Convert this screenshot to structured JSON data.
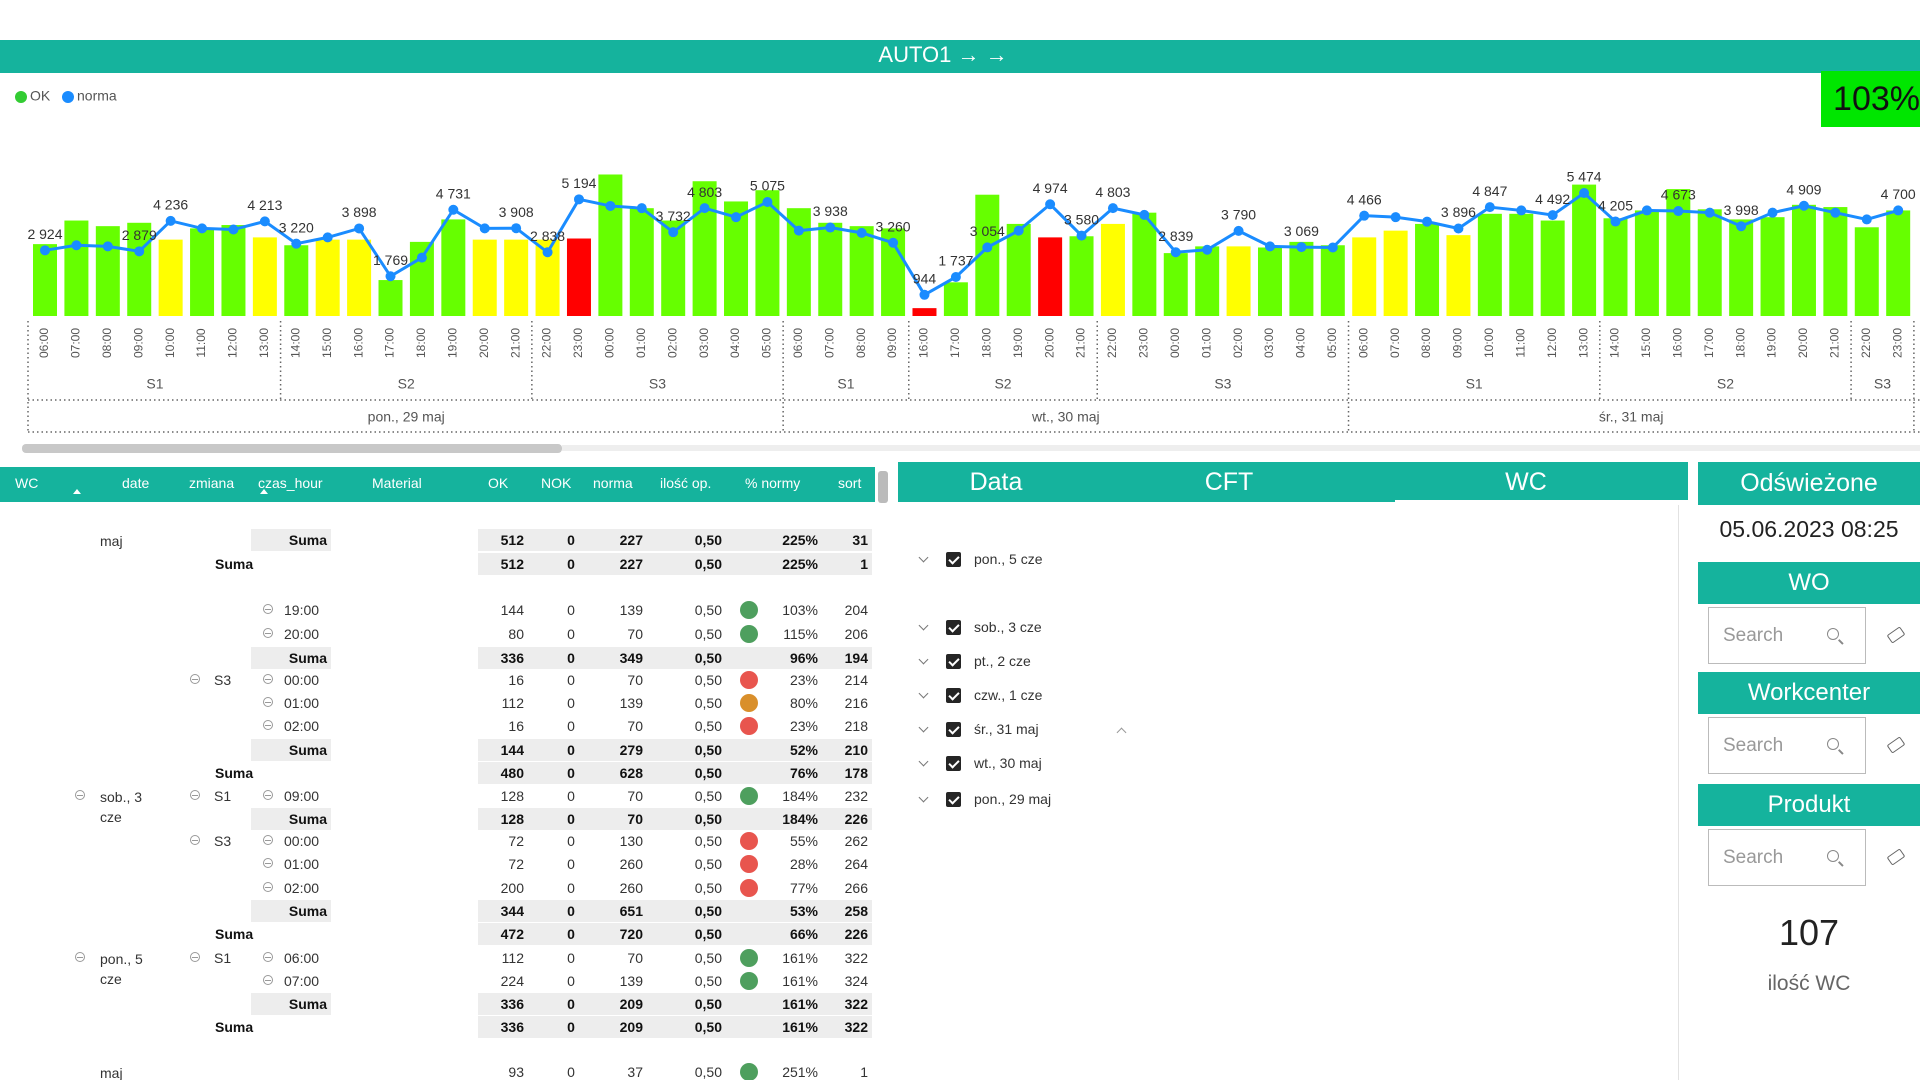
{
  "title": "AUTO1 → →",
  "kpi": "103%",
  "chart_data": {
    "type": "bar-line",
    "categories": [
      "06:00",
      "07:00",
      "08:00",
      "09:00",
      "10:00",
      "11:00",
      "12:00",
      "13:00",
      "14:00",
      "15:00",
      "16:00",
      "17:00",
      "18:00",
      "19:00",
      "20:00",
      "21:00",
      "22:00",
      "23:00",
      "00:00",
      "01:00",
      "02:00",
      "03:00",
      "04:00",
      "05:00",
      "06:00",
      "07:00",
      "08:00",
      "09:00",
      "16:00",
      "17:00",
      "18:00",
      "19:00",
      "20:00",
      "21:00",
      "22:00",
      "23:00",
      "00:00",
      "01:00",
      "02:00",
      "03:00",
      "04:00",
      "05:00",
      "06:00",
      "07:00",
      "08:00",
      "09:00",
      "10:00",
      "11:00",
      "12:00",
      "13:00",
      "14:00",
      "15:00",
      "16:00",
      "17:00",
      "18:00",
      "19:00",
      "20:00",
      "21:00",
      "22:00",
      "23:00"
    ],
    "shifts": [
      "S1",
      "S1",
      "S1",
      "S1",
      "S1",
      "S1",
      "S1",
      "S1",
      "S2",
      "S2",
      "S2",
      "S2",
      "S2",
      "S2",
      "S2",
      "S2",
      "S3",
      "S3",
      "S3",
      "S3",
      "S3",
      "S3",
      "S3",
      "S3",
      "S1",
      "S1",
      "S1",
      "S1",
      "S2",
      "S2",
      "S2",
      "S2",
      "S2",
      "S2",
      "S3",
      "S3",
      "S3",
      "S3",
      "S3",
      "S3",
      "S3",
      "S3",
      "S1",
      "S1",
      "S1",
      "S1",
      "S1",
      "S1",
      "S1",
      "S1",
      "S2",
      "S2",
      "S2",
      "S2",
      "S2",
      "S2",
      "S2",
      "S2",
      "S3",
      "S3"
    ],
    "days": [
      "pon., 29 maj",
      "pon., 29 maj",
      "pon., 29 maj",
      "pon., 29 maj",
      "pon., 29 maj",
      "pon., 29 maj",
      "pon., 29 maj",
      "pon., 29 maj",
      "pon., 29 maj",
      "pon., 29 maj",
      "pon., 29 maj",
      "pon., 29 maj",
      "pon., 29 maj",
      "pon., 29 maj",
      "pon., 29 maj",
      "pon., 29 maj",
      "pon., 29 maj",
      "pon., 29 maj",
      "pon., 29 maj",
      "pon., 29 maj",
      "pon., 29 maj",
      "pon., 29 maj",
      "pon., 29 maj",
      "pon., 29 maj",
      "wt., 30 maj",
      "wt., 30 maj",
      "wt., 30 maj",
      "wt., 30 maj",
      "wt., 30 maj",
      "wt., 30 maj",
      "wt., 30 maj",
      "wt., 30 maj",
      "wt., 30 maj",
      "wt., 30 maj",
      "wt., 30 maj",
      "wt., 30 maj",
      "wt., 30 maj",
      "wt., 30 maj",
      "wt., 30 maj",
      "wt., 30 maj",
      "wt., 30 maj",
      "wt., 30 maj",
      "śr., 31 maj",
      "śr., 31 maj",
      "śr., 31 maj",
      "śr., 31 maj",
      "śr., 31 maj",
      "śr., 31 maj",
      "śr., 31 maj",
      "śr., 31 maj",
      "śr., 31 maj",
      "śr., 31 maj",
      "śr., 31 maj",
      "śr., 31 maj",
      "śr., 31 maj",
      "śr., 31 maj",
      "śr., 31 maj",
      "śr., 31 maj",
      "śr., 31 maj",
      "śr., 31 maj"
    ],
    "ylim": [
      0,
      6500
    ],
    "series": [
      {
        "name": "OK",
        "color": "#33cc33",
        "values": [
          3200,
          4250,
          4000,
          4150,
          3400,
          3900,
          4050,
          3500,
          3150,
          3400,
          3400,
          1600,
          3300,
          4300,
          3400,
          3400,
          3400,
          3450,
          6300,
          4800,
          4250,
          6000,
          5100,
          5600,
          4800,
          4150,
          4000,
          3900,
          350,
          1500,
          5400,
          4100,
          3500,
          3550,
          4100,
          4600,
          2800,
          3100,
          3100,
          3050,
          3300,
          3150,
          3500,
          3800,
          4100,
          3600,
          4550,
          4550,
          4250,
          5850,
          4350,
          4700,
          5650,
          4750,
          4300,
          4400,
          4950,
          4850,
          3950,
          4700
        ],
        "colors": [
          "#66ff00",
          "#66ff00",
          "#66ff00",
          "#66ff00",
          "#ffff00",
          "#66ff00",
          "#66ff00",
          "#ffff00",
          "#66ff00",
          "#ffff00",
          "#ffff00",
          "#66ff00",
          "#66ff00",
          "#66ff00",
          "#ffff00",
          "#ffff00",
          "#ffff00",
          "#ff0000",
          "#66ff00",
          "#66ff00",
          "#66ff00",
          "#66ff00",
          "#66ff00",
          "#66ff00",
          "#66ff00",
          "#66ff00",
          "#66ff00",
          "#66ff00",
          "#ff0000",
          "#66ff00",
          "#66ff00",
          "#66ff00",
          "#ff0000",
          "#66ff00",
          "#ffff00",
          "#66ff00",
          "#66ff00",
          "#66ff00",
          "#ffff00",
          "#66ff00",
          "#66ff00",
          "#66ff00",
          "#ffff00",
          "#ffff00",
          "#66ff00",
          "#ffff00",
          "#66ff00",
          "#66ff00",
          "#66ff00",
          "#66ff00",
          "#66ff00",
          "#66ff00",
          "#66ff00",
          "#66ff00",
          "#66ff00",
          "#66ff00",
          "#66ff00",
          "#66ff00",
          "#66ff00",
          "#66ff00"
        ]
      },
      {
        "name": "norma",
        "color": "#1a8cff",
        "values": [
          2924,
          3150,
          3100,
          2879,
          4236,
          3900,
          3850,
          4213,
          3220,
          3500,
          3898,
          1769,
          2600,
          4731,
          3900,
          3908,
          2838,
          5194,
          4900,
          4800,
          3732,
          4803,
          4400,
          5075,
          3800,
          3938,
          3700,
          3260,
          944,
          1737,
          3054,
          3800,
          4974,
          3580,
          4803,
          4500,
          2839,
          2950,
          3790,
          3100,
          3069,
          3050,
          4466,
          4400,
          4200,
          3896,
          4847,
          4700,
          4492,
          5474,
          4205,
          4700,
          4673,
          4600,
          3998,
          4600,
          4909,
          4600,
          4300,
          4700
        ],
        "value_labels": [
          "2 924",
          null,
          null,
          "2 879",
          "4 236",
          null,
          null,
          "4 213",
          "3 220",
          null,
          "3 898",
          "1 769",
          null,
          "4 731",
          null,
          "3 908",
          "2 838",
          "5 194",
          null,
          null,
          "3 732",
          "4 803",
          null,
          "5 075",
          null,
          "3 938",
          null,
          "3 260",
          "944",
          "1 737",
          "3 054",
          null,
          "4 974",
          "3 580",
          "4 803",
          null,
          "2 839",
          null,
          "3 790",
          null,
          "3 069",
          null,
          "4 466",
          null,
          null,
          "3 896",
          "4 847",
          null,
          "4 492",
          "5 474",
          "4 205",
          null,
          "4 673",
          null,
          "3 998",
          null,
          "4 909",
          null,
          null,
          "4 700"
        ]
      }
    ]
  },
  "table": {
    "columns": [
      "WC",
      "date",
      "zmiana",
      "czas_hour",
      "Material",
      "OK",
      "NOK",
      "norma",
      "ilość op.",
      "% normy",
      "sort"
    ],
    "rows": [
      {
        "date": "maj",
        "hour": "Suma",
        "cells": [
          512,
          0,
          227,
          "0,50",
          "225%",
          31
        ],
        "bold": true
      },
      {
        "zmiana": "Suma",
        "cells": [
          512,
          0,
          227,
          "0,50",
          "225%",
          1
        ],
        "bold": true
      },
      {
        "hour": "19:00",
        "cells": [
          144,
          0,
          139,
          "0,50",
          "103%",
          204
        ],
        "dot": "#4e9f5e"
      },
      {
        "hour": "20:00",
        "cells": [
          80,
          0,
          70,
          "0,50",
          "115%",
          206
        ],
        "dot": "#4e9f5e"
      },
      {
        "hour": "Suma",
        "cells": [
          336,
          0,
          349,
          "0,50",
          "96%",
          194
        ],
        "bold": true
      },
      {
        "zmiana": "S3",
        "hour": "00:00",
        "cells": [
          16,
          0,
          70,
          "0,50",
          "23%",
          214
        ],
        "dot": "#e8554e"
      },
      {
        "hour": "01:00",
        "cells": [
          112,
          0,
          139,
          "0,50",
          "80%",
          216
        ],
        "dot": "#d98f2b"
      },
      {
        "hour": "02:00",
        "cells": [
          16,
          0,
          70,
          "0,50",
          "23%",
          218
        ],
        "dot": "#e8554e"
      },
      {
        "hour": "Suma",
        "cells": [
          144,
          0,
          279,
          "0,50",
          "52%",
          210
        ],
        "bold": true
      },
      {
        "zmiana": "Suma",
        "cells": [
          480,
          0,
          628,
          "0,50",
          "76%",
          178
        ],
        "bold": true
      },
      {
        "date": "sob., 3 cze",
        "zmiana": "S1",
        "hour": "09:00",
        "cells": [
          128,
          0,
          70,
          "0,50",
          "184%",
          232
        ],
        "dot": "#4e9f5e"
      },
      {
        "hour": "Suma",
        "cells": [
          128,
          0,
          70,
          "0,50",
          "184%",
          226
        ],
        "bold": true
      },
      {
        "zmiana": "S3",
        "hour": "00:00",
        "cells": [
          72,
          0,
          130,
          "0,50",
          "55%",
          262
        ],
        "dot": "#e8554e"
      },
      {
        "hour": "01:00",
        "cells": [
          72,
          0,
          260,
          "0,50",
          "28%",
          264
        ],
        "dot": "#e8554e"
      },
      {
        "hour": "02:00",
        "cells": [
          200,
          0,
          260,
          "0,50",
          "77%",
          266
        ],
        "dot": "#e8554e"
      },
      {
        "hour": "Suma",
        "cells": [
          344,
          0,
          651,
          "0,50",
          "53%",
          258
        ],
        "bold": true
      },
      {
        "zmiana": "Suma",
        "cells": [
          472,
          0,
          720,
          "0,50",
          "66%",
          226
        ],
        "bold": true
      },
      {
        "date": "pon., 5 cze",
        "zmiana": "S1",
        "hour": "06:00",
        "cells": [
          112,
          0,
          70,
          "0,50",
          "161%",
          322
        ],
        "dot": "#4e9f5e"
      },
      {
        "hour": "07:00",
        "cells": [
          224,
          0,
          139,
          "0,50",
          "161%",
          324
        ],
        "dot": "#4e9f5e"
      },
      {
        "hour": "Suma",
        "cells": [
          336,
          0,
          209,
          "0,50",
          "161%",
          322
        ],
        "bold": true
      },
      {
        "zmiana": "Suma",
        "cells": [
          336,
          0,
          209,
          "0,50",
          "161%",
          322
        ],
        "bold": true
      },
      {
        "date": "maj",
        "cells": [
          93,
          0,
          37,
          "0,50",
          "251%",
          1
        ],
        "dot": "#4e9f5e"
      }
    ]
  },
  "slicer": {
    "headers": [
      "Data",
      "CFT",
      "WC"
    ],
    "items": [
      "pon., 5 cze",
      "sob., 3 cze",
      "pt., 2 cze",
      "czw., 1 cze",
      "śr., 31 maj",
      "wt., 30 maj",
      "pon., 29 maj"
    ]
  },
  "side": {
    "refreshed_label": "Odświeżone",
    "refreshed": "05.06.2023 08:25",
    "filters": [
      {
        "title": "WO",
        "placeholder": "Search"
      },
      {
        "title": "Workcenter",
        "placeholder": "Search"
      },
      {
        "title": "Produkt",
        "placeholder": "Search"
      }
    ],
    "count": 107,
    "count_label": "ilość WC"
  }
}
